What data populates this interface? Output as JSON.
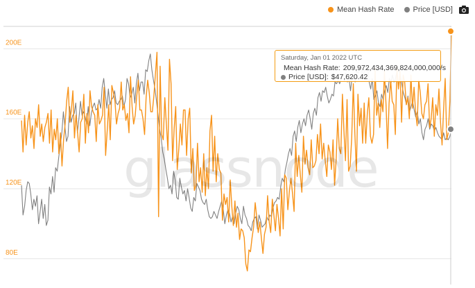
{
  "legend": {
    "hash_label": "Mean Hash Rate",
    "price_label": "Price [USD]"
  },
  "watermark": "glassnode",
  "camera_icon": "camera-icon",
  "tooltip": {
    "date": "Saturday, Jan 01 2022 UTC",
    "hash_label": "Mean Hash Rate:",
    "hash_value": "209,972,434,369,824,000,000/s",
    "price_label": "Price [USD]:",
    "price_value": "$47,620.42"
  },
  "colors": {
    "hash": "#f7931a",
    "price": "#808080",
    "grid": "#e6e6e6",
    "tick": "#f7931a"
  },
  "chart_data": {
    "type": "line",
    "title": "",
    "xlabel": "",
    "ylabel": "",
    "ylim": [
      70,
      212
    ],
    "yticks": [
      80,
      120,
      160,
      200
    ],
    "ytick_labels": [
      "80E",
      "120E",
      "160E",
      "200E"
    ],
    "grid": true,
    "legend_position": "top-right",
    "series": [
      {
        "name": "Mean Hash Rate",
        "values": [
          159,
          141,
          162,
          145,
          158,
          164,
          149,
          156,
          143,
          160,
          155,
          168,
          150,
          157,
          147,
          155,
          158,
          163,
          146,
          165,
          141,
          154,
          148,
          160,
          140,
          152,
          133,
          148,
          157,
          170,
          178,
          158,
          165,
          176,
          149,
          162,
          152,
          141,
          158,
          160,
          174,
          146,
          163,
          152,
          176,
          167,
          164,
          162,
          147,
          168,
          157,
          159,
          162,
          178,
          139,
          153,
          168,
          148,
          179,
          175,
          170,
          157,
          163,
          166,
          181,
          165,
          168,
          159,
          163,
          152,
          184,
          167,
          157,
          162,
          173,
          182,
          165,
          165,
          160,
          151,
          172,
          182,
          175,
          164,
          164,
          173,
          186,
          198,
          104,
          190,
          151,
          148,
          172,
          157,
          142,
          194,
          180,
          136,
          154,
          167,
          131,
          143,
          157,
          145,
          165,
          165,
          139,
          160,
          166,
          129,
          143,
          119,
          122,
          146,
          124,
          132,
          118,
          140,
          116,
          132,
          120,
          153,
          162,
          130,
          150,
          124,
          140,
          131,
          129,
          102,
          117,
          111,
          115,
          101,
          125,
          110,
          99,
          113,
          98,
          106,
          91,
          97,
          96,
          92,
          77,
          73,
          85,
          84,
          92,
          98,
          112,
          104,
          95,
          101,
          92,
          83,
          94,
          98,
          116,
          101,
          95,
          114,
          105,
          96,
          111,
          103,
          93,
          120,
          97,
          128,
          126,
          108,
          119,
          126,
          117,
          107,
          146,
          127,
          139,
          128,
          118,
          150,
          134,
          142,
          132,
          128,
          148,
          132,
          133,
          136,
          151,
          140,
          157,
          137,
          146,
          136,
          127,
          145,
          141,
          131,
          148,
          122,
          137,
          160,
          143,
          140,
          174,
          153,
          136,
          171,
          130,
          133,
          149,
          180,
          152,
          130,
          174,
          156,
          166,
          146,
          169,
          146,
          163,
          172,
          150,
          146,
          151,
          189,
          162,
          169,
          155,
          171,
          164,
          187,
          168,
          143,
          169,
          182,
          170,
          168,
          151,
          190,
          177,
          187,
          158,
          185,
          181,
          168,
          172,
          160,
          185,
          166,
          178,
          164,
          156,
          182,
          175,
          163,
          160,
          168,
          170,
          180,
          155,
          160,
          172,
          150,
          168,
          162,
          177,
          158,
          145,
          166,
          183,
          148,
          152,
          170,
          210
        ]
      },
      {
        "name": "Price [USD]",
        "values": [
          122,
          105,
          110,
          119,
          124,
          123,
          117,
          108,
          114,
          110,
          116,
          100,
          107,
          114,
          103,
          111,
          99,
          102,
          121,
          117,
          127,
          118,
          132,
          130,
          138,
          145,
          152,
          164,
          155,
          147,
          150,
          167,
          158,
          162,
          163,
          169,
          152,
          160,
          170,
          162,
          164,
          161,
          157,
          167,
          156,
          163,
          167,
          169,
          165,
          166,
          171,
          166,
          178,
          183,
          174,
          166,
          177,
          168,
          171,
          172,
          176,
          169,
          168,
          170,
          171,
          173,
          167,
          171,
          183,
          180,
          172,
          174,
          178,
          169,
          180,
          186,
          176,
          181,
          181,
          174,
          188,
          187,
          193,
          197,
          188,
          182,
          177,
          170,
          162,
          154,
          149,
          141,
          137,
          131,
          126,
          120,
          122,
          117,
          130,
          125,
          115,
          114,
          126,
          121,
          117,
          119,
          113,
          120,
          115,
          109,
          107,
          115,
          113,
          123,
          121,
          119,
          114,
          112,
          111,
          114,
          108,
          104,
          103,
          104,
          107,
          105,
          103,
          107,
          110,
          113,
          108,
          100,
          105,
          108,
          106,
          101,
          104,
          100,
          106,
          110,
          108,
          103,
          100,
          110,
          105,
          103,
          99,
          98,
          96,
          101,
          103,
          104,
          97,
          105,
          102,
          98,
          99,
          100,
          104,
          102,
          105,
          104,
          109,
          112,
          113,
          115,
          114,
          121,
          126,
          124,
          131,
          135,
          140,
          143,
          139,
          150,
          153,
          147,
          155,
          159,
          152,
          157,
          160,
          156,
          162,
          165,
          160,
          154,
          163,
          166,
          162,
          172,
          175,
          170,
          176,
          175,
          178,
          173,
          169,
          171,
          174,
          173,
          181,
          180,
          182,
          180,
          183,
          184,
          185,
          186,
          181,
          183,
          176,
          184,
          185,
          181,
          187,
          186,
          190,
          189,
          183,
          188,
          188,
          190,
          181,
          177,
          183,
          171,
          173,
          176,
          169,
          167,
          174,
          171,
          176,
          179,
          175,
          183,
          180,
          185,
          181,
          183,
          188,
          189,
          185,
          180,
          175,
          172,
          168,
          173,
          164,
          167,
          170,
          165,
          161,
          164,
          157,
          160,
          152,
          148,
          154,
          156,
          160,
          154,
          157,
          156,
          153,
          155,
          152,
          150,
          149,
          148,
          152,
          148,
          149,
          148,
          150,
          154
        ]
      }
    ]
  }
}
